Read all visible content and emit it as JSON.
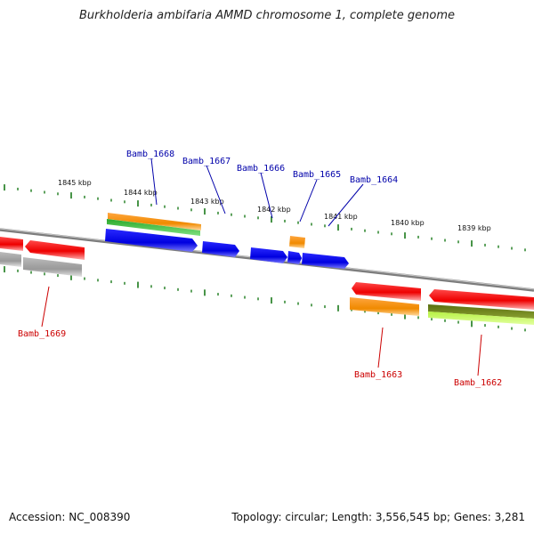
{
  "title": "Burkholderia ambifaria AMMD chromosome 1, complete genome",
  "footer": {
    "accession": "Accession: NC_008390",
    "summary": "Topology: circular; Length: 3,556,545 bp; Genes: 3,281"
  },
  "colors": {
    "backbone": "#888888",
    "tick": "#1a7a1a",
    "forward_label": "#0000aa",
    "reverse_label": "#cc0000"
  },
  "kbp_labels": [
    "1845 kbp",
    "1844 kbp",
    "1843 kbp",
    "1842 kbp",
    "1841 kbp",
    "1840 kbp",
    "1839 kbp"
  ],
  "gene_labels": [
    {
      "name": "Bamb_1668",
      "strand": "forward"
    },
    {
      "name": "Bamb_1667",
      "strand": "forward"
    },
    {
      "name": "Bamb_1666",
      "strand": "forward"
    },
    {
      "name": "Bamb_1665",
      "strand": "forward"
    },
    {
      "name": "Bamb_1664",
      "strand": "forward"
    },
    {
      "name": "Bamb_1669",
      "strand": "reverse"
    },
    {
      "name": "Bamb_1663",
      "strand": "reverse"
    },
    {
      "name": "Bamb_1662",
      "strand": "reverse"
    }
  ]
}
